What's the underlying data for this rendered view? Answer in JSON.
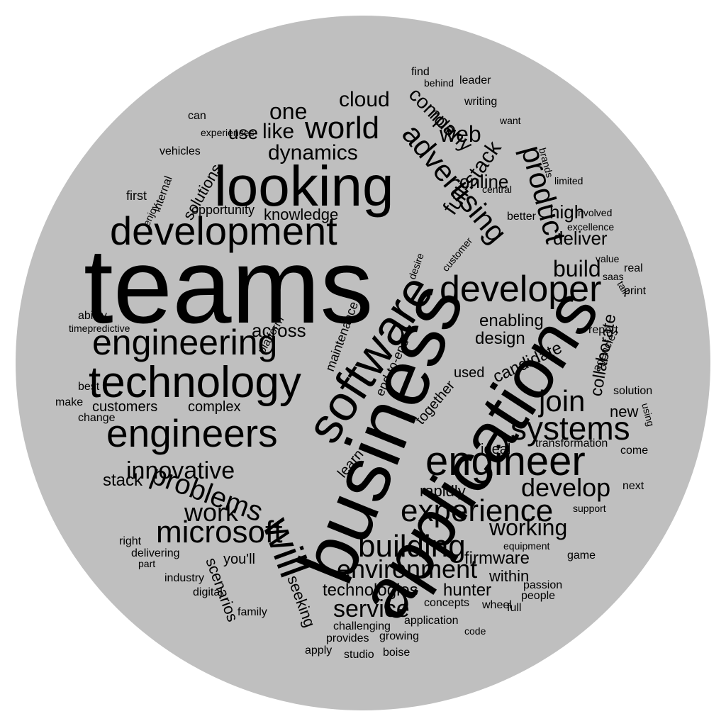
{
  "colors": {
    "background": "#ffffff",
    "disc": "#bfbfbf",
    "text": "#000000"
  },
  "words": [
    "teams",
    "business",
    "applications",
    "looking",
    "development",
    "technology",
    "software",
    "engineering",
    "engineers",
    "engineer",
    "developer",
    "advertising",
    "product",
    "experience",
    "will",
    "systems",
    "world",
    "join",
    "microsoft",
    "building",
    "problems",
    "web",
    "innovative",
    "work",
    "environment",
    "full-stack",
    "company",
    "one",
    "like",
    "dynamics",
    "cloud",
    "service",
    "develop",
    "working",
    "build",
    "online",
    "role",
    "across",
    "technologies",
    "high",
    "deliver",
    "use",
    "solutions",
    "design",
    "enabling",
    "candidate",
    "collaborate",
    "knowledge",
    "customers",
    "complex",
    "stack",
    "you'll",
    "hunter",
    "firmware",
    "within",
    "rapidly",
    "learn",
    "together",
    "used",
    "ideal",
    "new",
    "scenarios",
    "seeking",
    "maintenance",
    "end-to-end",
    "report",
    "agencies",
    "solution",
    "transformation",
    "opportunity",
    "internal",
    "experiences",
    "vehicles",
    "first",
    "ability",
    "timepredictive",
    "best",
    "make",
    "change",
    "right",
    "delivering",
    "part",
    "industry",
    "digital",
    "family",
    "challenging",
    "application",
    "provides",
    "growing",
    "studio",
    "boise",
    "apply",
    "code",
    "concepts",
    "wheel",
    "full",
    "people",
    "passion",
    "game",
    "equipment",
    "support",
    "next",
    "come",
    "print",
    "real",
    "value",
    "excellence",
    "involved",
    "better",
    "central",
    "brands",
    "limited",
    "want",
    "writing",
    "leader",
    "find",
    "behind",
    "customer",
    "desire",
    "platform",
    "can",
    "enjoy",
    "saas",
    "talk",
    "using"
  ]
}
